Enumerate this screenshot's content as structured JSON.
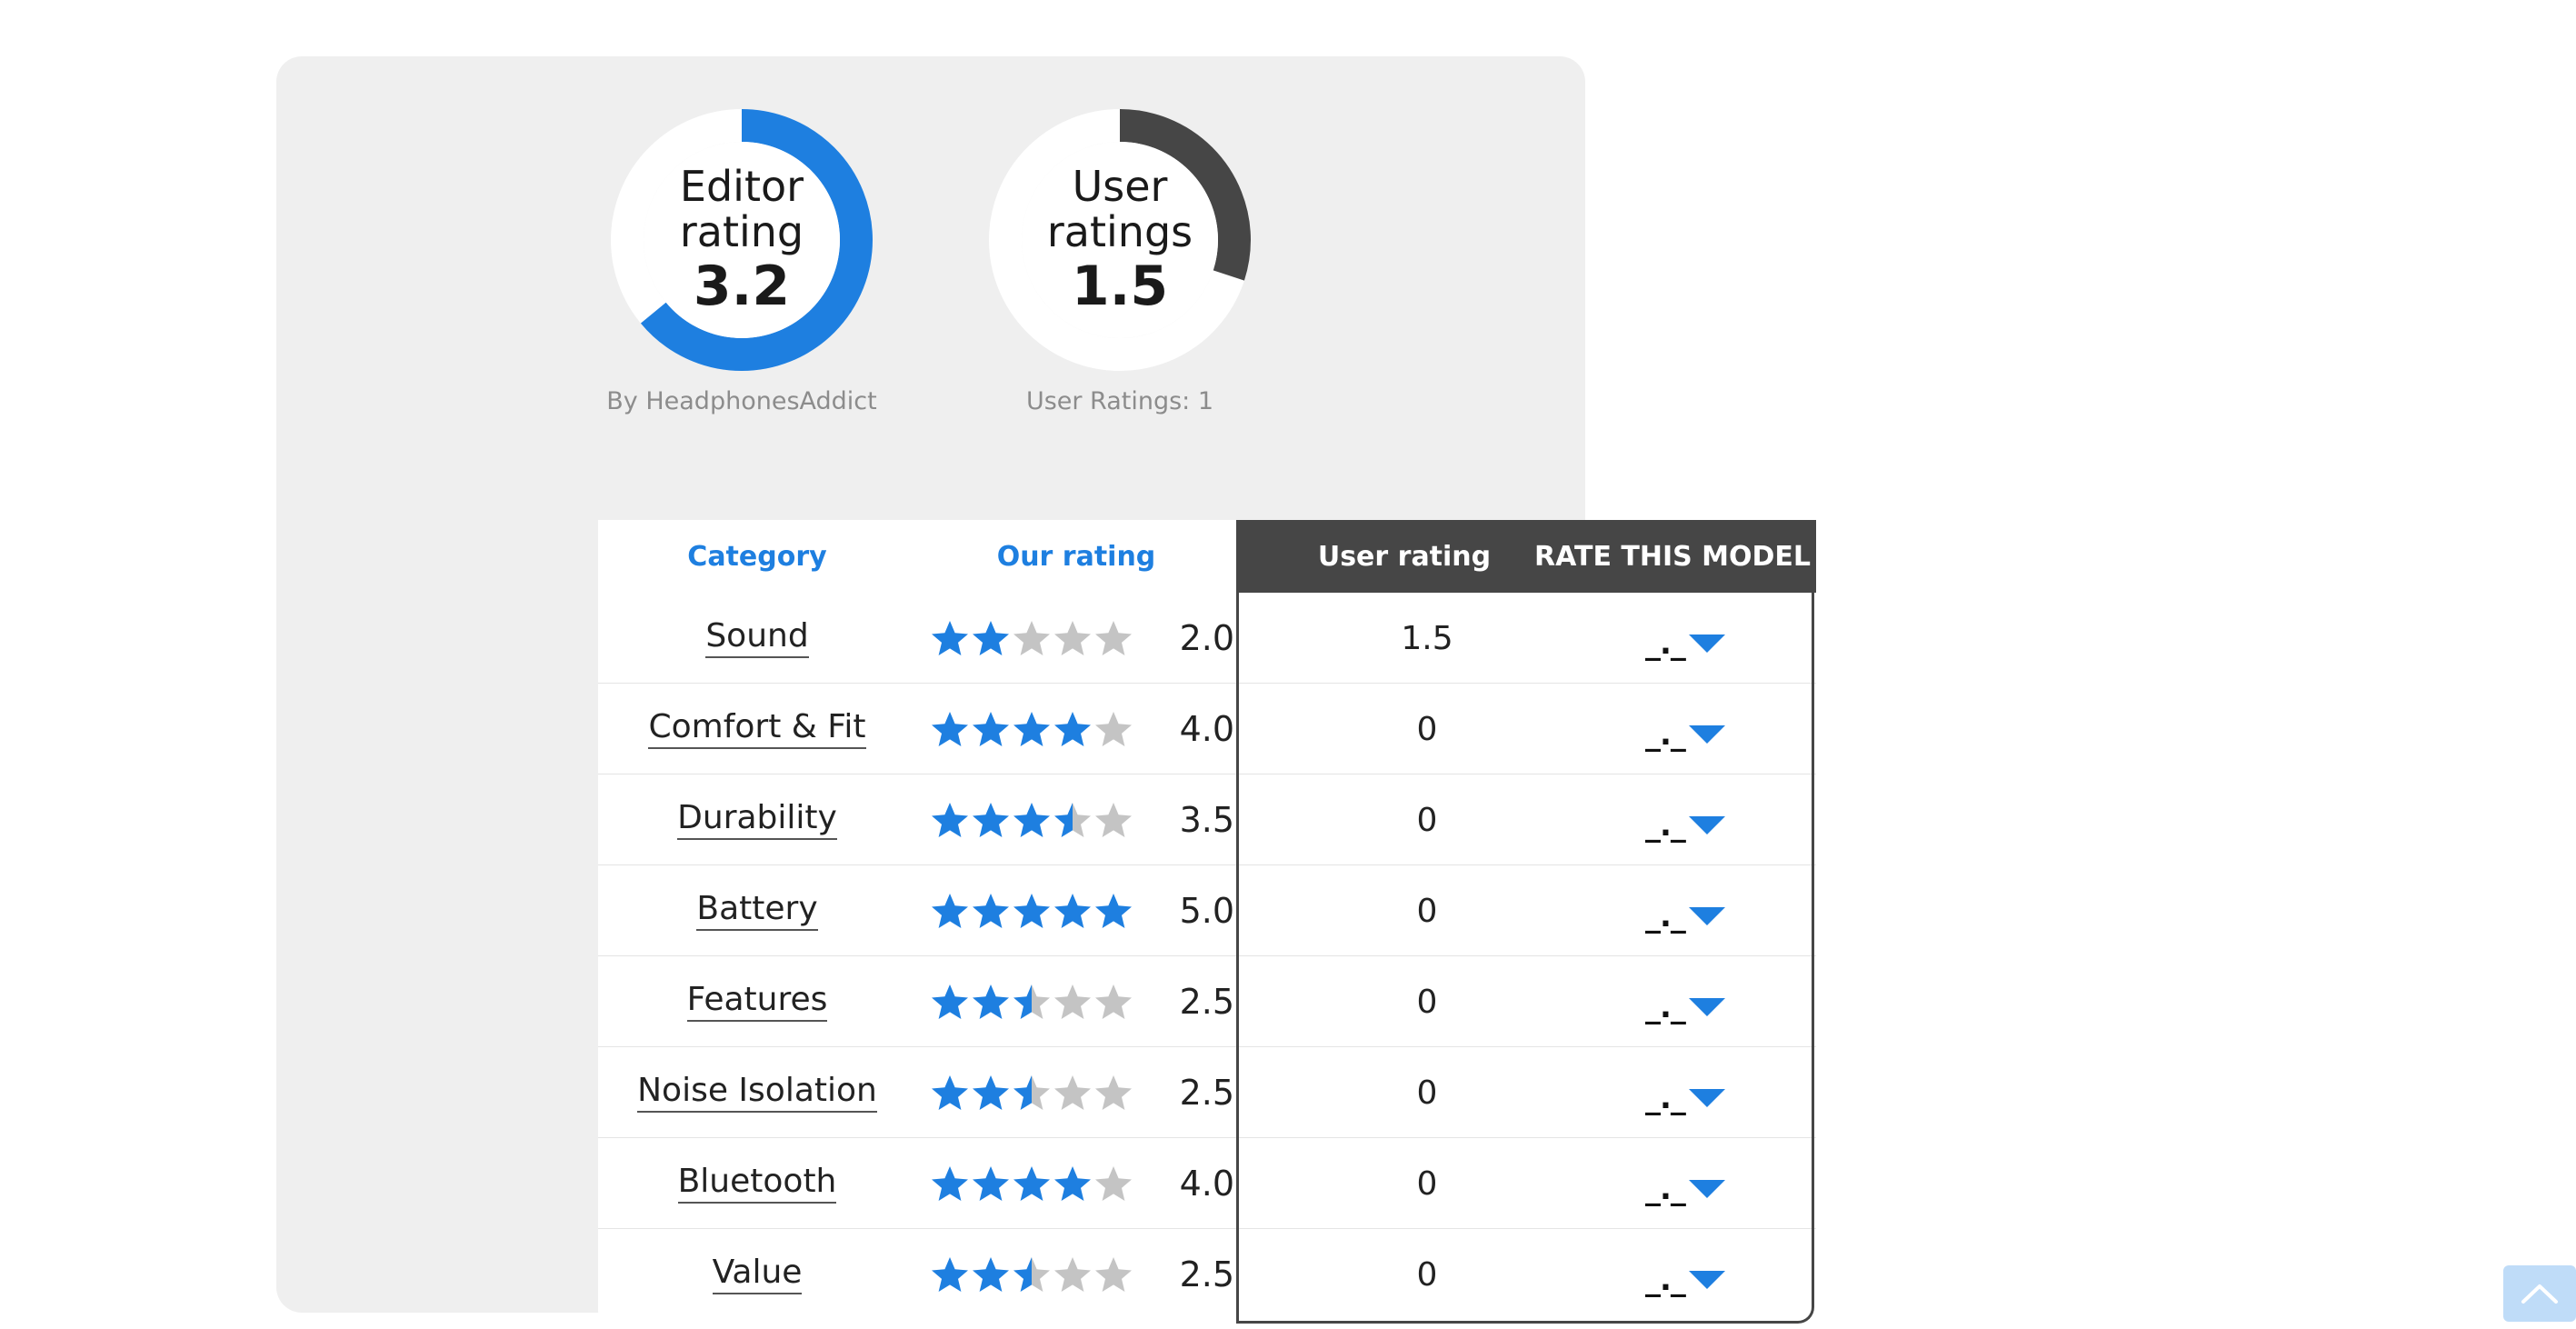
{
  "editor": {
    "title": "Editor\nrating",
    "value": "3.2",
    "fraction": 0.64,
    "color": "#1e7fe0",
    "caption": "By HeadphonesAddict"
  },
  "user": {
    "title": "User\nratings",
    "value": "1.5",
    "fraction": 0.3,
    "color": "#464646",
    "caption": "User Ratings: 1"
  },
  "table": {
    "headers": {
      "category": "Category",
      "our_rating": "Our rating",
      "user_rating": "User rating",
      "rate_model": "RATE THIS MODEL"
    },
    "rows": [
      {
        "category": "Sound",
        "stars": 2.0,
        "score": "2.0",
        "user": "1.5",
        "rate": "_._"
      },
      {
        "category": "Comfort & Fit",
        "stars": 4.0,
        "score": "4.0",
        "user": "0",
        "rate": "_._"
      },
      {
        "category": "Durability",
        "stars": 3.5,
        "score": "3.5",
        "user": "0",
        "rate": "_._"
      },
      {
        "category": "Battery",
        "stars": 5.0,
        "score": "5.0",
        "user": "0",
        "rate": "_._"
      },
      {
        "category": "Features",
        "stars": 2.5,
        "score": "2.5",
        "user": "0",
        "rate": "_._"
      },
      {
        "category": "Noise Isolation",
        "stars": 2.5,
        "score": "2.5",
        "user": "0",
        "rate": "_._"
      },
      {
        "category": "Bluetooth",
        "stars": 4.0,
        "score": "4.0",
        "user": "0",
        "rate": "_._"
      },
      {
        "category": "Value",
        "stars": 2.5,
        "score": "2.5",
        "user": "0",
        "rate": "_._"
      }
    ]
  },
  "colors": {
    "accent": "#1e7fe0",
    "star_empty": "#c4c4c4",
    "dark": "#464646"
  },
  "back_to_top": {
    "icon": "chevron-up-icon"
  }
}
